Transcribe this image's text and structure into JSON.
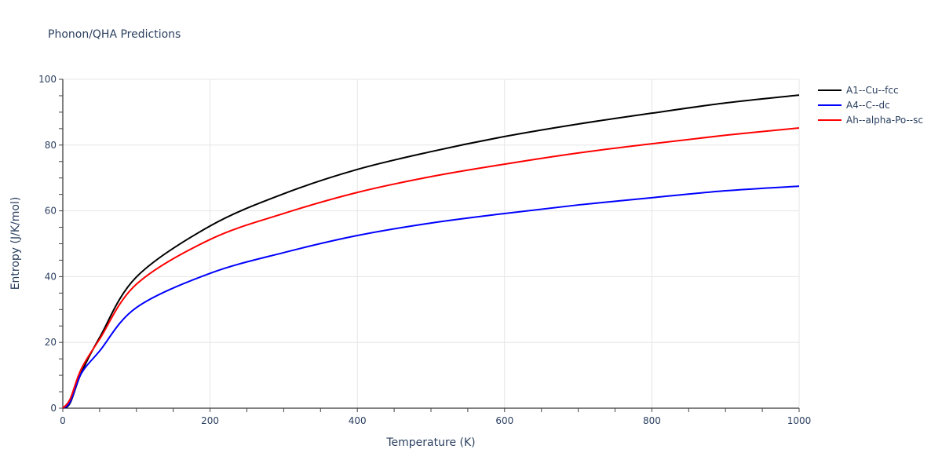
{
  "title": "Phonon/QHA Predictions",
  "colors": {
    "grid": "#e5e5e5",
    "axis": "#000000",
    "text": "#2a3f5f"
  },
  "chart_data": {
    "type": "line",
    "title": "Phonon/QHA Predictions",
    "xlabel": "Temperature (K)",
    "ylabel": "Entropy (J/K/mol)",
    "xlim": [
      0,
      1000
    ],
    "ylim": [
      0,
      100
    ],
    "xticks": [
      0,
      200,
      400,
      600,
      800,
      1000
    ],
    "yticks": [
      0,
      20,
      40,
      60,
      80,
      100
    ],
    "grid": true,
    "legend_position": "right",
    "x": [
      0,
      10,
      25,
      50,
      100,
      200,
      300,
      400,
      500,
      600,
      700,
      800,
      900,
      1000
    ],
    "series": [
      {
        "name": "A1--Cu--fcc",
        "color": "#000000",
        "values": [
          0,
          1.6,
          10.7,
          21.5,
          39.9,
          55.4,
          65.2,
          72.6,
          78.0,
          82.6,
          86.4,
          89.7,
          92.8,
          95.2
        ]
      },
      {
        "name": "A4--C--dc",
        "color": "#0000ff",
        "values": [
          0,
          1.9,
          10.5,
          17.4,
          30.6,
          41.0,
          47.3,
          52.5,
          56.3,
          59.2,
          61.8,
          64.0,
          66.1,
          67.5
        ]
      },
      {
        "name": "Ah--alpha-Po--sc",
        "color": "#ff0000",
        "values": [
          0,
          2.8,
          11.9,
          21.0,
          37.7,
          51.3,
          59.2,
          65.6,
          70.4,
          74.2,
          77.6,
          80.4,
          83.0,
          85.2
        ]
      }
    ]
  }
}
